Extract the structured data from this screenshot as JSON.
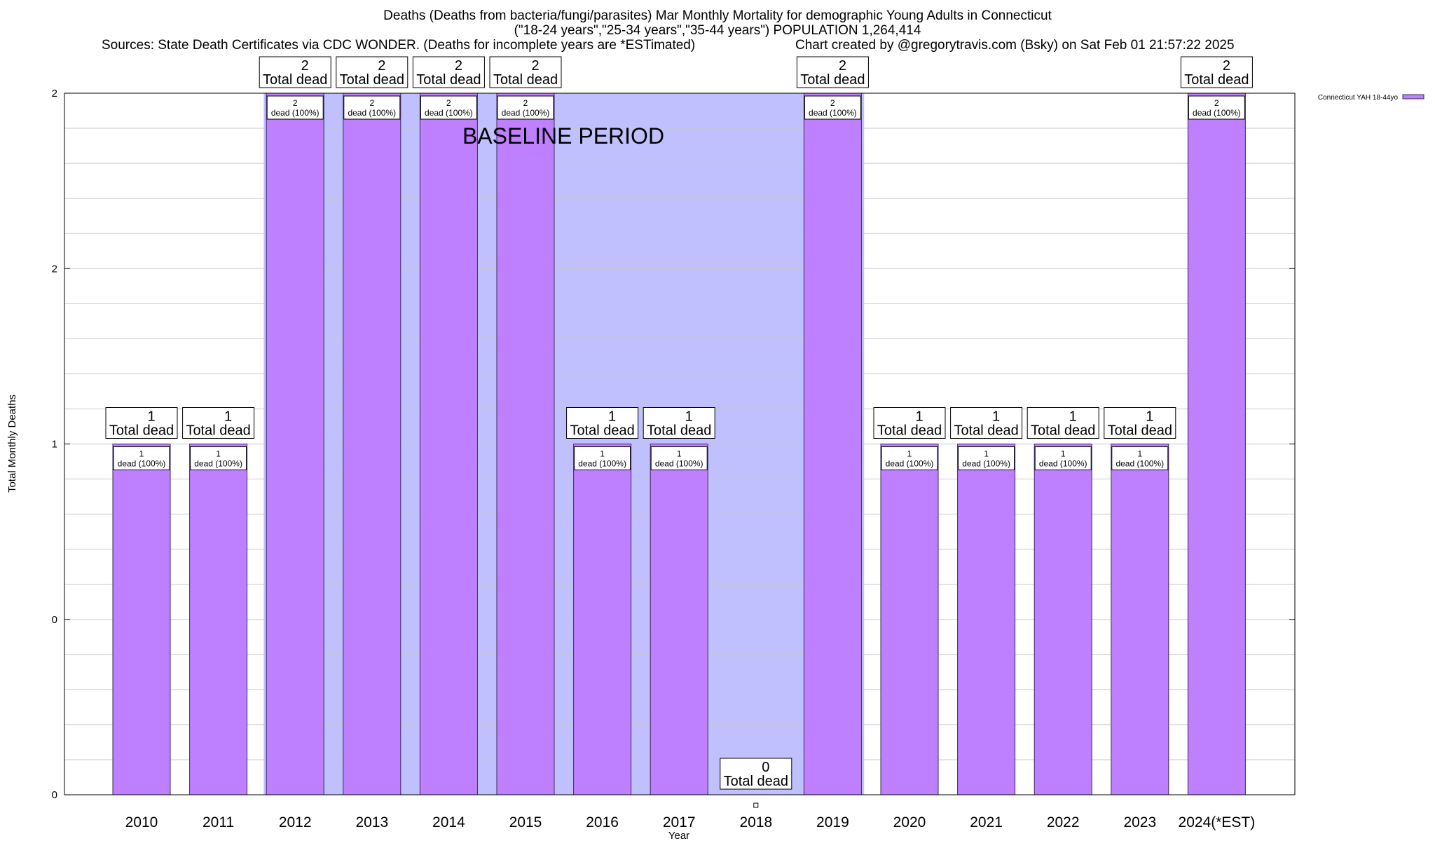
{
  "chart_data": {
    "type": "bar",
    "title": "Deaths (Deaths from bacteria/fungi/parasites) Mar Monthly Mortality for demographic Young Adults in Connecticut",
    "subtitle": "(\"18-24 years\",\"25-34 years\",\"35-44 years\") POPULATION 1,264,414",
    "source": "Sources: State Death Certificates via CDC WONDER. (Deaths for incomplete years are *ESTimated)",
    "credit": "Chart created by @gregorytravis.com (Bsky) on Sat Feb 01 21:57:22 2025",
    "xlabel": "Year",
    "ylabel": "Total Monthly Deaths",
    "categories": [
      "2010",
      "2011",
      "2012",
      "2013",
      "2014",
      "2015",
      "2016",
      "2017",
      "2018",
      "2019",
      "2020",
      "2021",
      "2022",
      "2023",
      "2024(*EST)"
    ],
    "ylim": [
      0,
      2
    ],
    "ytick_values": [
      0,
      0.5,
      1,
      1.5,
      2
    ],
    "ytick_labels": [
      "0",
      "0",
      "1",
      "2",
      "2"
    ],
    "series": [
      {
        "name": "Connecticut YAH 18-44yo",
        "color": "#bf80ff",
        "values": [
          1,
          1,
          2,
          2,
          2,
          2,
          1,
          1,
          0,
          2,
          1,
          1,
          1,
          1,
          2
        ]
      }
    ],
    "total_labels": [
      {
        "value": "1",
        "label": "Total dead"
      },
      {
        "value": "1",
        "label": "Total dead"
      },
      {
        "value": "2",
        "label": "Total dead"
      },
      {
        "value": "2",
        "label": "Total dead"
      },
      {
        "value": "2",
        "label": "Total dead"
      },
      {
        "value": "2",
        "label": "Total dead"
      },
      {
        "value": "1",
        "label": "Total dead"
      },
      {
        "value": "1",
        "label": "Total dead"
      },
      {
        "value": "0",
        "label": "Total dead"
      },
      {
        "value": "2",
        "label": "Total dead"
      },
      {
        "value": "1",
        "label": "Total dead"
      },
      {
        "value": "1",
        "label": "Total dead"
      },
      {
        "value": "1",
        "label": "Total dead"
      },
      {
        "value": "1",
        "label": "Total dead"
      },
      {
        "value": "2",
        "label": "Total dead"
      }
    ],
    "bar_labels": [
      {
        "value": "1",
        "label": "dead (100%)"
      },
      {
        "value": "1",
        "label": "dead (100%)"
      },
      {
        "value": "2",
        "label": "dead (100%)"
      },
      {
        "value": "2",
        "label": "dead (100%)"
      },
      {
        "value": "2",
        "label": "dead (100%)"
      },
      {
        "value": "2",
        "label": "dead (100%)"
      },
      {
        "value": "1",
        "label": "dead (100%)"
      },
      {
        "value": "1",
        "label": "dead (100%)"
      },
      null,
      {
        "value": "2",
        "label": "dead (100%)"
      },
      {
        "value": "1",
        "label": "dead (100%)"
      },
      {
        "value": "1",
        "label": "dead (100%)"
      },
      {
        "value": "1",
        "label": "dead (100%)"
      },
      {
        "value": "1",
        "label": "dead (100%)"
      },
      {
        "value": "2",
        "label": "dead (100%)"
      }
    ],
    "baseline": {
      "label": "BASELINE PERIOD",
      "start": "2012",
      "end": "2019",
      "color": "#c0c0ff"
    },
    "grid": true,
    "legend_position": "top-right"
  }
}
